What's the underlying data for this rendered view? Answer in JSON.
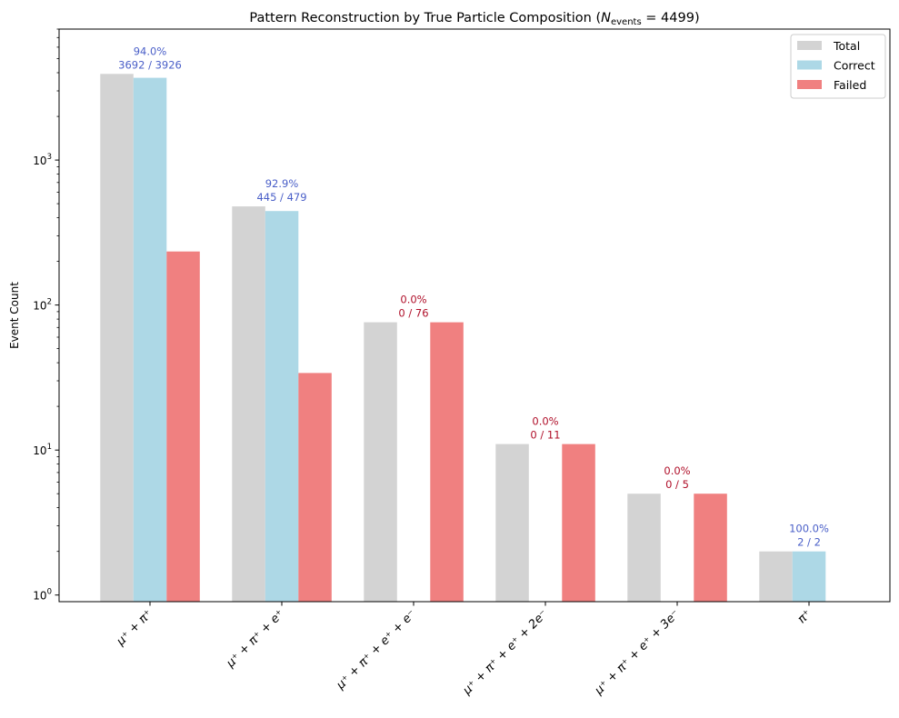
{
  "chart_data": {
    "type": "bar",
    "title_main": "Pattern Reconstruction by True Particle Composition (",
    "title_n": "N",
    "title_n_sub": "events",
    "title_tail": " = 4499)",
    "ylabel": "Event Count",
    "xlabel": "",
    "yscale": "log",
    "ylim": [
      0.9,
      8000
    ],
    "grid": false,
    "legend_position": "top-right",
    "y_ticks": [
      {
        "value": 1,
        "base": "10",
        "exp": "0"
      },
      {
        "value": 10,
        "base": "10",
        "exp": "1"
      },
      {
        "value": 100,
        "base": "10",
        "exp": "2"
      },
      {
        "value": 1000,
        "base": "10",
        "exp": "3"
      }
    ],
    "categories": [
      "μ⁺ + π⁺",
      "μ⁺ + π⁺ + e⁺",
      "μ⁺ + π⁺ + e⁺ + e⁻",
      "μ⁺ + π⁺ + e⁺ + 2e⁻",
      "μ⁺ + π⁺ + e⁺ + 3e⁻",
      "π⁺"
    ],
    "series": [
      {
        "name": "Total",
        "color": "#d3d3d3",
        "values": [
          3926,
          479,
          76,
          11,
          5,
          2
        ]
      },
      {
        "name": "Correct",
        "color": "#add8e6",
        "values": [
          3692,
          445,
          0,
          0,
          0,
          2
        ]
      },
      {
        "name": "Failed",
        "color": "#f08080",
        "values": [
          234,
          34,
          76,
          11,
          5,
          0
        ]
      }
    ],
    "annotations": [
      {
        "pct": "94.0%",
        "ratio": "3692 / 3926",
        "color": "#4a5fc8"
      },
      {
        "pct": "92.9%",
        "ratio": "445 / 479",
        "color": "#4a5fc8"
      },
      {
        "pct": "0.0%",
        "ratio": "0 / 76",
        "color": "#b0102a"
      },
      {
        "pct": "0.0%",
        "ratio": "0 / 11",
        "color": "#b0102a"
      },
      {
        "pct": "0.0%",
        "ratio": "0 / 5",
        "color": "#b0102a"
      },
      {
        "pct": "100.0%",
        "ratio": "2 / 2",
        "color": "#4a5fc8"
      }
    ]
  }
}
